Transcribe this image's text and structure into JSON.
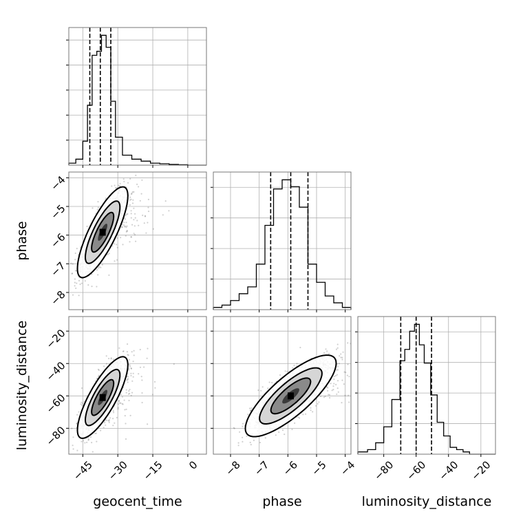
{
  "chart_data": {
    "type": "corner",
    "parameters": [
      "geocent_time",
      "phase",
      "luminosity_distance"
    ],
    "grid": true,
    "panels": {
      "geocent_time_hist": {
        "type": "histogram",
        "xlim": [
          -51,
          8
        ],
        "bin_edges": [
          -51,
          -48,
          -45,
          -43,
          -41,
          -39,
          -37,
          -35,
          -33,
          -31,
          -28,
          -24,
          -20,
          -16,
          -12,
          -8,
          -4,
          0,
          8
        ],
        "counts": [
          1,
          3,
          12,
          30,
          55,
          57,
          65,
          59,
          32,
          14,
          5,
          3,
          2,
          1,
          0.7,
          0.4,
          0.2,
          0
        ],
        "quantile_lines": [
          -42,
          -37.5,
          -33
        ]
      },
      "phase_hist": {
        "type": "histogram",
        "xlim": [
          -8.6,
          -3.8
        ],
        "bin_edges": [
          -8.6,
          -8.3,
          -8.0,
          -7.7,
          -7.4,
          -7.1,
          -6.8,
          -6.5,
          -6.2,
          -5.9,
          -5.6,
          -5.3,
          -5.0,
          -4.7,
          -4.4,
          -4.1,
          -3.8
        ],
        "counts": [
          1,
          2,
          4,
          7,
          10,
          20,
          37,
          53,
          57,
          54,
          45,
          20,
          12,
          6,
          3,
          1
        ],
        "quantile_lines": [
          -6.6,
          -5.9,
          -5.3
        ]
      },
      "luminosity_distance_hist": {
        "type": "histogram",
        "xlim": [
          -96,
          -11
        ],
        "bin_edges": [
          -96,
          -90,
          -85,
          -80,
          -75,
          -70,
          -67,
          -64,
          -61,
          -58,
          -55,
          -51,
          -47,
          -43,
          -39,
          -35,
          -31,
          -27,
          -11
        ],
        "counts": [
          1,
          2,
          5,
          12,
          24,
          41,
          46,
          54,
          57,
          48,
          40,
          26,
          14,
          8,
          3,
          2,
          1,
          0
        ],
        "quantile_lines": [
          -69.5,
          -60,
          -50.5
        ]
      },
      "phase_vs_geocent_time": {
        "type": "2d_density",
        "xlim": [
          -51,
          8
        ],
        "ylim": [
          -8.6,
          -3.8
        ],
        "center": [
          -36.5,
          -5.9
        ],
        "sigma": [
          4.5,
          0.66
        ],
        "correlation": 0.8
      },
      "luminosity_distance_vs_geocent_time": {
        "type": "2d_density",
        "xlim": [
          -51,
          8
        ],
        "ylim": [
          -96,
          -11
        ],
        "center": [
          -36.5,
          -61
        ],
        "sigma": [
          4.5,
          10.5
        ],
        "correlation": 0.8
      },
      "luminosity_distance_vs_phase": {
        "type": "2d_density",
        "xlim": [
          -8.6,
          -3.8
        ],
        "ylim": [
          -96,
          -11
        ],
        "center": [
          -5.9,
          -60
        ],
        "sigma": [
          0.66,
          10.5
        ],
        "correlation": 0.8
      }
    },
    "x_ticks": {
      "geocent_time": [
        -45,
        -30,
        -15,
        0
      ],
      "phase": [
        -8,
        -7,
        -6,
        -5,
        -4
      ],
      "luminosity_distance": [
        -80,
        -60,
        -40,
        -20
      ]
    },
    "y_ticks": {
      "phase": [
        -4,
        -5,
        -6,
        -7,
        -8
      ],
      "luminosity_distance": [
        -20,
        -40,
        -60,
        -80
      ]
    },
    "x_tick_labels": {
      "geocent_time": [
        "−45",
        "−30",
        "−15",
        "0"
      ],
      "phase": [
        "−8",
        "−7",
        "−6",
        "−5",
        "−4"
      ],
      "luminosity_distance": [
        "−80",
        "−60",
        "−40",
        "−20"
      ]
    },
    "y_tick_labels": {
      "phase": [
        "−4",
        "−5",
        "−6",
        "−7",
        "−8"
      ],
      "luminosity_distance": [
        "−20",
        "−40",
        "−60",
        "−80"
      ]
    },
    "xlabels": [
      "geocent_time",
      "phase",
      "luminosity_distance"
    ],
    "ylabels": [
      "phase",
      "luminosity_distance"
    ]
  }
}
